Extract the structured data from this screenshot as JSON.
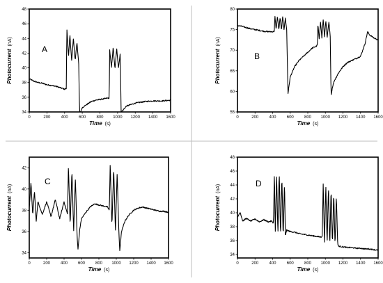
{
  "chart_data": [
    {
      "panel": "A",
      "type": "line",
      "title": "",
      "xlabel": "Time",
      "xunit": "(s)",
      "ylabel": "Photocurrent",
      "yunit": "(nA)",
      "xlim": [
        0,
        1600
      ],
      "ylim": [
        34,
        48
      ],
      "xticks": [
        0,
        200,
        400,
        600,
        800,
        1000,
        1200,
        1400,
        1600
      ],
      "yticks": [
        34,
        36,
        38,
        40,
        42,
        44,
        46,
        48
      ],
      "grid": false,
      "legend": "none",
      "series": [
        {
          "x": [
            0,
            50,
            100,
            150,
            200,
            250,
            300,
            350,
            400,
            420,
            425,
            445,
            460,
            480,
            500,
            520,
            540,
            560,
            570,
            580,
            600,
            650,
            700,
            750,
            800,
            850,
            900,
            905,
            910,
            930,
            950,
            970,
            990,
            1010,
            1030,
            1040,
            1050,
            1100,
            1200,
            1300,
            1400,
            1500,
            1600
          ],
          "y": [
            38.5,
            38.2,
            38.0,
            37.9,
            37.7,
            37.6,
            37.5,
            37.3,
            37.1,
            37.2,
            45.5,
            41.5,
            44.5,
            41.0,
            44.0,
            41.0,
            43.5,
            40.5,
            33.7,
            34.0,
            34.6,
            35.0,
            35.4,
            35.6,
            35.7,
            35.8,
            35.9,
            35.7,
            42.5,
            40.0,
            42.8,
            39.8,
            42.6,
            40.0,
            42.0,
            33.9,
            34.1,
            34.8,
            35.2,
            35.4,
            35.5,
            35.5,
            35.6
          ]
        }
      ]
    },
    {
      "panel": "B",
      "type": "line",
      "title": "",
      "xlabel": "Time",
      "xunit": "(s)",
      "ylabel": "Photocurrent",
      "yunit": "(nA)",
      "xlim": [
        0,
        1600
      ],
      "ylim": [
        55,
        80
      ],
      "xticks": [
        0,
        200,
        400,
        600,
        800,
        1000,
        1200,
        1400,
        1600
      ],
      "yticks": [
        55,
        60,
        65,
        70,
        75,
        80
      ],
      "grid": false,
      "legend": "none",
      "series": [
        {
          "x": [
            0,
            50,
            100,
            150,
            200,
            250,
            300,
            350,
            400,
            420,
            425,
            440,
            455,
            470,
            485,
            500,
            515,
            530,
            545,
            560,
            575,
            600,
            650,
            700,
            750,
            800,
            850,
            900,
            910,
            915,
            930,
            945,
            960,
            975,
            990,
            1005,
            1020,
            1040,
            1055,
            1065,
            1080,
            1100,
            1150,
            1200,
            1250,
            1300,
            1350,
            1400,
            1450,
            1480,
            1500,
            1550,
            1600
          ],
          "y": [
            76.0,
            75.8,
            75.5,
            75.2,
            75.0,
            74.8,
            74.6,
            74.5,
            74.5,
            74.6,
            78.5,
            75.0,
            78.3,
            74.8,
            78.0,
            74.9,
            78.2,
            75.0,
            77.8,
            74.9,
            59.5,
            63.5,
            66.0,
            67.5,
            68.5,
            69.5,
            70.5,
            71.0,
            71.5,
            76.5,
            72.5,
            77.0,
            73.0,
            77.5,
            73.2,
            77.3,
            73.0,
            76.8,
            73.5,
            59.0,
            61.0,
            62.5,
            64.5,
            66.0,
            67.0,
            67.5,
            68.0,
            68.5,
            71.5,
            74.5,
            73.8,
            73.0,
            72.5
          ]
        }
      ]
    },
    {
      "panel": "C",
      "type": "line",
      "title": "",
      "xlabel": "Time",
      "xunit": "(s)",
      "ylabel": "Photocurrent",
      "yunit": "(nA)",
      "xlim": [
        0,
        1600
      ],
      "ylim": [
        33.5,
        43
      ],
      "xticks": [
        0,
        200,
        400,
        600,
        800,
        1000,
        1200,
        1400,
        1600
      ],
      "yticks": [
        34,
        36,
        38,
        40,
        42
      ],
      "grid": false,
      "legend": "none",
      "series": [
        {
          "x": [
            0,
            20,
            40,
            60,
            80,
            100,
            150,
            200,
            250,
            300,
            350,
            400,
            440,
            450,
            470,
            490,
            510,
            530,
            550,
            560,
            580,
            600,
            650,
            700,
            750,
            800,
            850,
            900,
            920,
            930,
            950,
            970,
            990,
            1010,
            1030,
            1040,
            1060,
            1100,
            1150,
            1200,
            1250,
            1300,
            1350,
            1400,
            1450,
            1500,
            1550,
            1600
          ],
          "y": [
            38.2,
            40.6,
            37.5,
            39.8,
            37.0,
            38.8,
            37.6,
            38.8,
            37.4,
            39.0,
            37.2,
            38.8,
            37.6,
            42.2,
            36.5,
            41.8,
            36.0,
            41.0,
            35.5,
            34.3,
            36.2,
            37.2,
            37.8,
            38.3,
            38.6,
            38.5,
            38.4,
            38.3,
            38.0,
            42.4,
            36.5,
            42.0,
            36.0,
            41.5,
            35.8,
            34.2,
            36.0,
            37.0,
            37.6,
            38.0,
            38.2,
            38.3,
            38.2,
            38.1,
            38.0,
            37.9,
            37.9,
            37.8
          ]
        }
      ]
    },
    {
      "panel": "D",
      "type": "line",
      "title": "",
      "xlabel": "Time",
      "xunit": "(s)",
      "ylabel": "Photocurrent",
      "yunit": "(nA)",
      "xlim": [
        0,
        1600
      ],
      "ylim": [
        33.5,
        48
      ],
      "xticks": [
        0,
        200,
        400,
        600,
        800,
        1000,
        1200,
        1400,
        1600
      ],
      "yticks": [
        34,
        36,
        38,
        40,
        42,
        44,
        46,
        48
      ],
      "grid": false,
      "legend": "none",
      "series": [
        {
          "x": [
            0,
            30,
            60,
            100,
            150,
            200,
            250,
            300,
            350,
            390,
            410,
            420,
            430,
            445,
            460,
            475,
            490,
            505,
            520,
            535,
            545,
            560,
            600,
            650,
            700,
            750,
            800,
            850,
            900,
            950,
            965,
            975,
            990,
            1005,
            1020,
            1035,
            1050,
            1065,
            1080,
            1095,
            1110,
            1125,
            1140,
            1150,
            1200,
            1250,
            1300,
            1350,
            1400,
            1450,
            1500,
            1550,
            1600
          ],
          "y": [
            39.3,
            40.1,
            38.8,
            39.2,
            38.8,
            39.1,
            38.7,
            39.0,
            38.7,
            38.8,
            38.5,
            46.0,
            37.0,
            45.5,
            36.8,
            46.0,
            36.5,
            45.3,
            36.3,
            44.5,
            36.7,
            37.5,
            37.3,
            37.2,
            37.0,
            36.9,
            36.8,
            36.7,
            36.6,
            36.5,
            36.7,
            44.3,
            35.6,
            44.0,
            35.5,
            43.8,
            35.3,
            43.5,
            35.3,
            43.0,
            35.2,
            42.5,
            35.5,
            35.2,
            35.1,
            35.0,
            35.0,
            34.9,
            34.9,
            34.8,
            34.8,
            34.7,
            34.6
          ]
        }
      ]
    }
  ]
}
